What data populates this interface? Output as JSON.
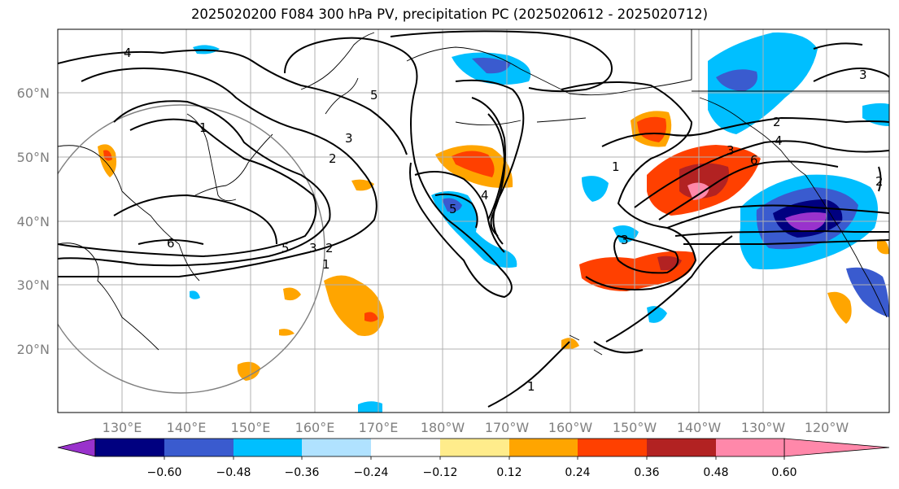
{
  "title": "2025020200 F084 300 hPa PV, precipitation PC (2025020612 - 2025020712)",
  "lon_ticks": [
    "130°E",
    "140°E",
    "150°E",
    "160°E",
    "170°E",
    "180°W",
    "170°W",
    "160°W",
    "150°W",
    "140°W",
    "130°W",
    "120°W"
  ],
  "lat_ticks": [
    "60°N",
    "50°N",
    "40°N",
    "30°N",
    "20°N"
  ],
  "contour_labels": [
    "4",
    "5",
    "1",
    "3",
    "2",
    "6",
    "5",
    "3",
    "2",
    "1",
    "5",
    "4",
    "3",
    "1",
    "2",
    "3",
    "6",
    "4",
    "2",
    "3",
    "1"
  ],
  "colorbar": {
    "tick_labels": [
      "−0.60",
      "−0.48",
      "−0.36",
      "−0.24",
      "−0.12",
      "0.12",
      "0.24",
      "0.36",
      "0.48",
      "0.60"
    ],
    "colors": [
      "#9932cc",
      "#000080",
      "#3a5bcf",
      "#00bfff",
      "#b0e2ff",
      "#ffffff",
      "#ffec8b",
      "#ffa500",
      "#ff4000",
      "#b22222",
      "#ff88aa"
    ]
  }
}
